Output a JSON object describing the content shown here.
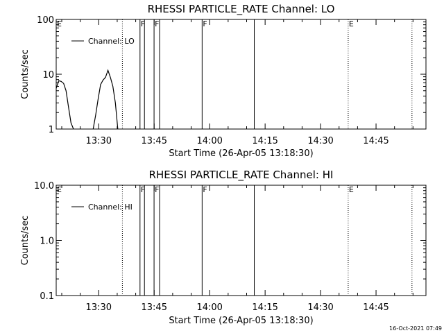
{
  "chart_data": [
    {
      "type": "line",
      "title": "RHESSI PARTICLE_RATE Channel: LO",
      "xlabel": "Start Time (26-Apr-05 13:18:30)",
      "ylabel": "Counts/sec",
      "yscale": "log",
      "ylim": [
        1,
        100
      ],
      "xlim": [
        "13:18:30",
        "14:58:30"
      ],
      "x_tick_labels": [
        "13:30",
        "13:45",
        "14:00",
        "14:15",
        "14:30",
        "14:45"
      ],
      "y_tick_labels": [
        "1",
        "10",
        "100"
      ],
      "legend": {
        "label": "Channel: LO",
        "position": "top-left"
      },
      "series": [
        {
          "name": "Channel: LO",
          "x": [
            "13:18:30",
            "13:19:10",
            "13:19:50",
            "13:20:30",
            "13:21:10",
            "13:21:50",
            "13:22:30",
            "13:23:10"
          ],
          "values": [
            5.5,
            7.6,
            7.4,
            6.8,
            5.0,
            2.5,
            1.3,
            1.0
          ]
        },
        {
          "name": "Channel: LO",
          "x": [
            "13:28:30",
            "13:29:10",
            "13:29:50",
            "13:30:30",
            "13:31:10",
            "13:31:50",
            "13:32:30",
            "13:33:10",
            "13:33:50",
            "13:34:30",
            "13:35:10"
          ],
          "values": [
            1.0,
            1.8,
            3.5,
            6.5,
            7.8,
            8.8,
            11.8,
            8.7,
            6.0,
            3.0,
            1.0
          ]
        }
      ],
      "markers": [
        {
          "label": "E",
          "time": "13:18:30",
          "style": "none"
        },
        {
          "label": "",
          "time": "13:36:24",
          "style": "dotted"
        },
        {
          "label": "F",
          "time": "13:41:10",
          "style": "solid"
        },
        {
          "label": "",
          "time": "13:42:22",
          "style": "solid"
        },
        {
          "label": "F",
          "time": "13:44:58",
          "style": "solid"
        },
        {
          "label": "",
          "time": "13:46:28",
          "style": "solid"
        },
        {
          "label": "F",
          "time": "13:57:58",
          "style": "solid"
        },
        {
          "label": "",
          "time": "14:12:04",
          "style": "solid"
        },
        {
          "label": "E",
          "time": "14:37:28",
          "style": "dotted"
        },
        {
          "label": "",
          "time": "14:54:43",
          "style": "dotted"
        }
      ]
    },
    {
      "type": "line",
      "title": "RHESSI PARTICLE_RATE Channel: HI",
      "xlabel": "Start Time (26-Apr-05 13:18:30)",
      "ylabel": "Counts/sec",
      "yscale": "log",
      "ylim": [
        0.1,
        10.0
      ],
      "xlim": [
        "13:18:30",
        "14:58:30"
      ],
      "x_tick_labels": [
        "13:30",
        "13:45",
        "14:00",
        "14:15",
        "14:30",
        "14:45"
      ],
      "y_tick_labels": [
        "0.1",
        "1.0",
        "10.0"
      ],
      "legend": {
        "label": "Channel: HI",
        "position": "top-left"
      },
      "series": [],
      "markers": [
        {
          "label": "E",
          "time": "13:18:30",
          "style": "none"
        },
        {
          "label": "",
          "time": "13:36:24",
          "style": "dotted"
        },
        {
          "label": "F",
          "time": "13:41:10",
          "style": "solid"
        },
        {
          "label": "",
          "time": "13:42:22",
          "style": "solid"
        },
        {
          "label": "F",
          "time": "13:44:58",
          "style": "solid"
        },
        {
          "label": "",
          "time": "13:46:28",
          "style": "solid"
        },
        {
          "label": "F",
          "time": "13:57:58",
          "style": "solid"
        },
        {
          "label": "",
          "time": "14:12:04",
          "style": "solid"
        },
        {
          "label": "E",
          "time": "14:37:28",
          "style": "dotted"
        },
        {
          "label": "",
          "time": "14:54:43",
          "style": "dotted"
        }
      ]
    }
  ],
  "footer": {
    "timestamp": "16-Oct-2021 07:49"
  }
}
